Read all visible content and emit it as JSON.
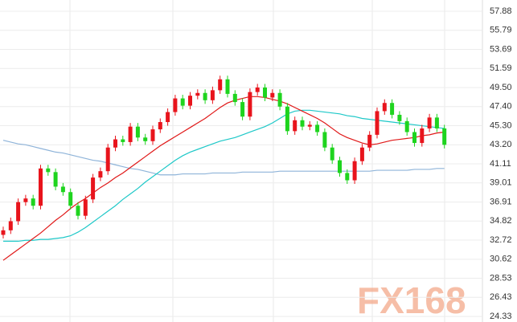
{
  "chart_data": {
    "type": "candlestick",
    "watermark": "FX168",
    "up_color": "#e8141c",
    "down_color": "#1ed41e",
    "ylim": [
      23.72,
      59.12
    ],
    "yticks": [
      57.88,
      55.79,
      53.69,
      51.59,
      {
        "value": 49.5,
        "label": "49.50"
      },
      {
        "value": 47.4,
        "label": "47.40"
      },
      {
        "value": 45.3,
        "label": "45.30"
      },
      {
        "value": 43.2,
        "label": "43.20"
      },
      41.11,
      39.01,
      36.91,
      34.82,
      32.72,
      30.62,
      28.53,
      26.43,
      24.33
    ],
    "grid": true,
    "open": [
      33.3,
      33.8,
      34.8,
      36.9,
      37.3,
      36.5,
      40.6,
      40.2,
      38.6,
      38.0,
      36.5,
      35.4,
      37.2,
      39.6,
      40.3,
      42.9,
      43.8,
      43.5,
      45.2,
      44.0,
      43.6,
      44.9,
      45.7,
      46.8,
      48.3,
      47.5,
      48.6,
      48.9,
      48.1,
      49.2,
      50.4,
      48.8,
      47.9,
      46.3,
      49.0,
      49.5,
      48.4,
      48.9,
      47.4,
      44.7,
      45.9,
      45.2,
      45.4,
      44.6,
      42.9,
      41.5,
      40.1,
      39.3,
      41.4,
      42.9,
      44.3,
      46.9,
      47.8,
      46.5,
      45.8,
      44.6,
      43.4,
      45.0,
      46.2,
      45.0
    ],
    "high": [
      34.2,
      35.2,
      37.3,
      37.7,
      37.7,
      41.0,
      41.0,
      40.6,
      39.0,
      38.4,
      36.9,
      37.6,
      40.0,
      40.7,
      43.3,
      44.2,
      44.2,
      45.6,
      45.6,
      44.4,
      45.3,
      46.1,
      47.2,
      48.7,
      48.7,
      49.0,
      49.3,
      49.3,
      49.6,
      50.8,
      50.8,
      49.2,
      48.3,
      49.4,
      49.9,
      49.9,
      49.3,
      49.3,
      47.8,
      46.3,
      46.3,
      45.8,
      45.8,
      45.0,
      43.3,
      41.9,
      40.5,
      41.8,
      43.3,
      44.7,
      47.3,
      48.2,
      48.2,
      46.9,
      46.2,
      45.0,
      45.4,
      46.6,
      46.6,
      45.4
    ],
    "low": [
      32.9,
      33.4,
      34.4,
      36.5,
      36.1,
      36.1,
      39.8,
      38.2,
      37.6,
      36.1,
      35.0,
      35.0,
      36.8,
      39.2,
      39.9,
      42.5,
      43.1,
      43.1,
      43.6,
      43.2,
      43.2,
      44.5,
      45.3,
      46.4,
      47.1,
      47.1,
      48.2,
      47.7,
      47.7,
      48.8,
      48.4,
      47.5,
      45.9,
      45.9,
      48.6,
      48.0,
      48.0,
      47.0,
      44.3,
      44.3,
      44.8,
      44.8,
      44.2,
      42.5,
      41.1,
      39.7,
      38.9,
      38.9,
      41.0,
      42.5,
      43.9,
      46.5,
      46.1,
      45.4,
      44.2,
      43.0,
      43.0,
      44.6,
      44.6,
      42.8
    ],
    "close": [
      33.8,
      34.8,
      36.9,
      37.3,
      36.5,
      40.6,
      40.2,
      38.6,
      38.0,
      36.5,
      35.4,
      37.2,
      39.6,
      40.3,
      42.9,
      43.8,
      43.5,
      45.2,
      44.0,
      43.6,
      44.9,
      45.7,
      46.8,
      48.3,
      47.5,
      48.6,
      48.9,
      48.1,
      49.2,
      50.4,
      48.8,
      47.9,
      46.3,
      49.0,
      49.5,
      48.4,
      48.9,
      47.4,
      44.7,
      45.9,
      45.2,
      45.4,
      44.6,
      42.9,
      41.5,
      40.1,
      39.3,
      41.4,
      42.9,
      44.3,
      46.9,
      47.8,
      46.5,
      45.8,
      44.6,
      43.4,
      45.0,
      46.2,
      45.0,
      43.2
    ],
    "lines": [
      {
        "color": "#8fb4d9",
        "values": [
          43.7,
          43.5,
          43.3,
          43.2,
          43.0,
          42.8,
          42.6,
          42.4,
          42.3,
          42.1,
          41.9,
          41.7,
          41.5,
          41.4,
          41.2,
          41.0,
          40.8,
          40.6,
          40.5,
          40.3,
          40.1,
          39.9,
          39.9,
          39.9,
          40.0,
          40.0,
          40.0,
          40.0,
          40.1,
          40.1,
          40.1,
          40.1,
          40.2,
          40.2,
          40.2,
          40.2,
          40.2,
          40.3,
          40.3,
          40.3,
          40.3,
          40.3,
          40.3,
          40.3,
          40.3,
          40.3,
          40.3,
          40.3,
          40.3,
          40.3,
          40.4,
          40.4,
          40.4,
          40.4,
          40.4,
          40.5,
          40.5,
          40.5,
          40.6,
          40.6
        ]
      },
      {
        "color": "#1ec8c8",
        "values": [
          32.6,
          32.6,
          32.6,
          32.7,
          32.7,
          32.8,
          32.8,
          32.9,
          33.0,
          33.2,
          33.6,
          34.1,
          34.7,
          35.3,
          35.9,
          36.5,
          37.2,
          37.8,
          38.4,
          39.1,
          39.7,
          40.3,
          40.9,
          41.5,
          42.0,
          42.4,
          42.7,
          43.0,
          43.3,
          43.6,
          43.8,
          44.0,
          44.3,
          44.6,
          44.9,
          45.2,
          45.6,
          46.1,
          46.6,
          46.9,
          47.0,
          47.0,
          46.9,
          46.8,
          46.7,
          46.6,
          46.4,
          46.3,
          46.1,
          46.0,
          45.9,
          45.8,
          45.7,
          45.6,
          45.5,
          45.4,
          45.3,
          45.2,
          45.1,
          45.0
        ]
      },
      {
        "color": "#e01818",
        "values": [
          30.5,
          31.1,
          31.7,
          32.3,
          32.9,
          33.5,
          34.2,
          34.9,
          35.5,
          36.2,
          36.8,
          37.3,
          37.9,
          38.5,
          39.0,
          39.6,
          40.1,
          40.7,
          41.3,
          41.9,
          42.5,
          43.1,
          43.6,
          44.1,
          44.6,
          45.1,
          45.6,
          46.1,
          46.7,
          47.3,
          47.8,
          48.1,
          48.3,
          48.5,
          48.5,
          48.4,
          48.2,
          48.0,
          47.7,
          47.3,
          46.9,
          46.5,
          46.1,
          45.6,
          45.0,
          44.4,
          44.0,
          43.7,
          43.4,
          43.2,
          43.3,
          43.5,
          43.7,
          43.8,
          43.9,
          44.0,
          44.2,
          44.3,
          44.5,
          44.6
        ]
      }
    ]
  }
}
